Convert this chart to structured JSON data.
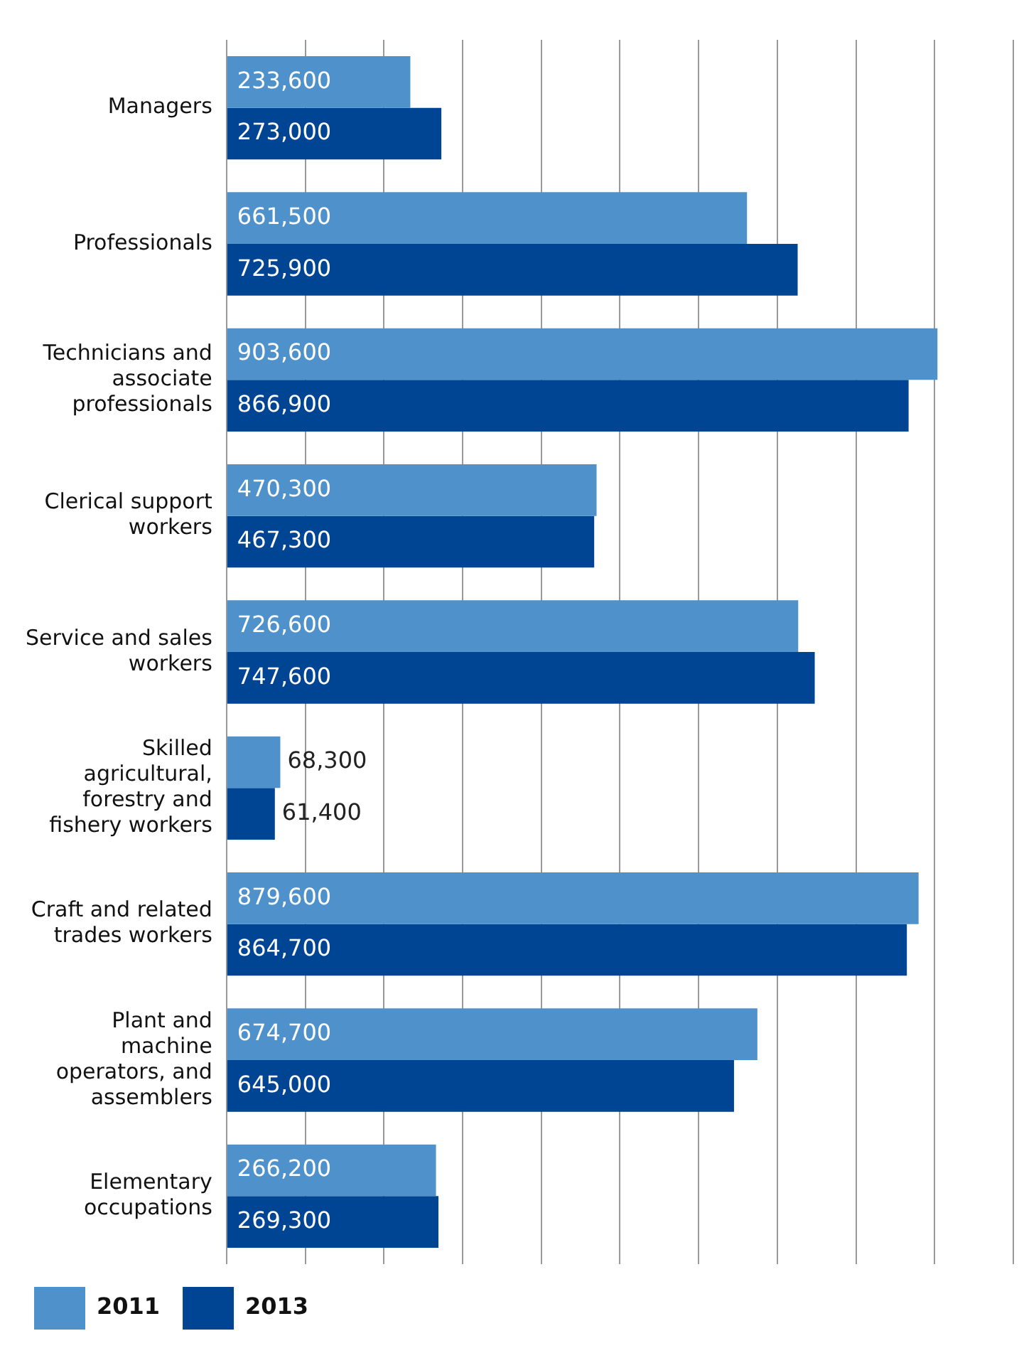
{
  "chart_data": {
    "type": "bar",
    "orientation": "horizontal",
    "categories": [
      "Managers",
      "Professionals",
      "Technicians and associate professionals",
      "Clerical support workers",
      "Service and sales workers",
      "Skilled agricultural, forestry and fishery workers",
      "Craft and related trades workers",
      "Plant and machine operators, and assemblers",
      "Elementary occupations"
    ],
    "series": [
      {
        "name": "2011",
        "color": "#4f92cb",
        "values": [
          233600,
          661500,
          903600,
          470300,
          726600,
          68300,
          879600,
          674700,
          266200
        ],
        "value_labels": [
          "233,600",
          "661,500",
          "903,600",
          "470,300",
          "726,600",
          "68,300",
          "879,600",
          "674,700",
          "266,200"
        ]
      },
      {
        "name": "2013",
        "color": "#004494",
        "values": [
          273000,
          725900,
          866900,
          467300,
          747600,
          61400,
          864700,
          645000,
          269300
        ],
        "value_labels": [
          "273,000",
          "725,900",
          "866,900",
          "467,300",
          "747,600",
          "61,400",
          "864,700",
          "645,000",
          "269,300"
        ]
      }
    ],
    "tick_labels": "y",
    "grid": "x",
    "legend": "bottom left"
  }
}
